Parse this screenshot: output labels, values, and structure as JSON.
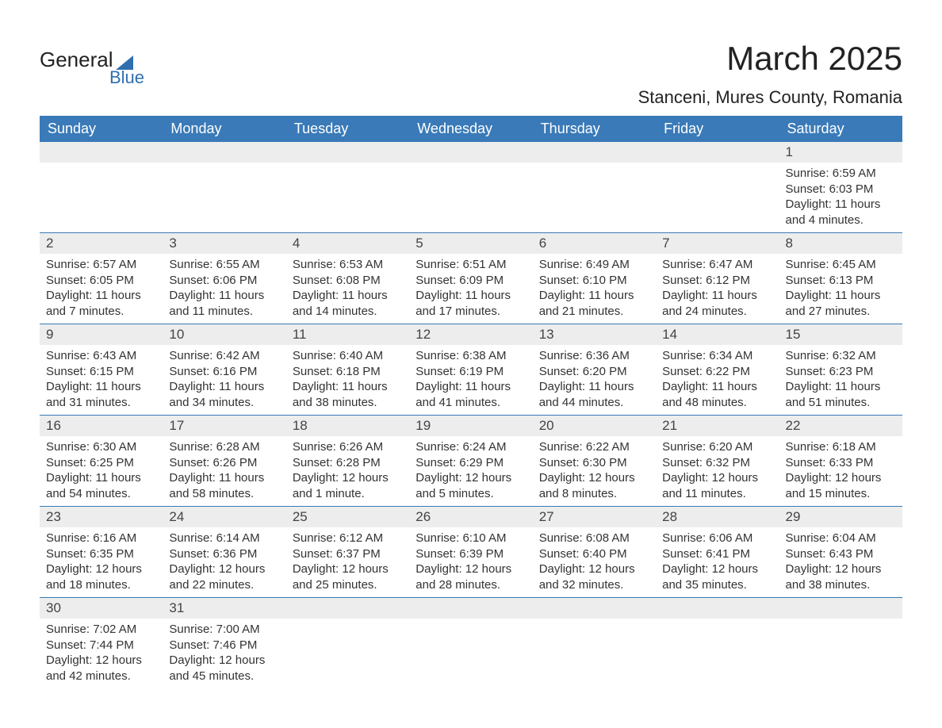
{
  "logo": {
    "general": "General",
    "blue": "Blue"
  },
  "title": "March 2025",
  "location": "Stanceni, Mures County, Romania",
  "colors": {
    "header_bg": "#3a7ab8",
    "header_text": "#ffffff",
    "daynum_bg": "#ededed",
    "border": "#3a7ab8",
    "text": "#333333",
    "logo_blue": "#2f6fb0"
  },
  "day_labels": [
    "Sunday",
    "Monday",
    "Tuesday",
    "Wednesday",
    "Thursday",
    "Friday",
    "Saturday"
  ],
  "weeks": [
    [
      null,
      null,
      null,
      null,
      null,
      null,
      {
        "n": "1",
        "sunrise": "Sunrise: 6:59 AM",
        "sunset": "Sunset: 6:03 PM",
        "daylight": "Daylight: 11 hours and 4 minutes."
      }
    ],
    [
      {
        "n": "2",
        "sunrise": "Sunrise: 6:57 AM",
        "sunset": "Sunset: 6:05 PM",
        "daylight": "Daylight: 11 hours and 7 minutes."
      },
      {
        "n": "3",
        "sunrise": "Sunrise: 6:55 AM",
        "sunset": "Sunset: 6:06 PM",
        "daylight": "Daylight: 11 hours and 11 minutes."
      },
      {
        "n": "4",
        "sunrise": "Sunrise: 6:53 AM",
        "sunset": "Sunset: 6:08 PM",
        "daylight": "Daylight: 11 hours and 14 minutes."
      },
      {
        "n": "5",
        "sunrise": "Sunrise: 6:51 AM",
        "sunset": "Sunset: 6:09 PM",
        "daylight": "Daylight: 11 hours and 17 minutes."
      },
      {
        "n": "6",
        "sunrise": "Sunrise: 6:49 AM",
        "sunset": "Sunset: 6:10 PM",
        "daylight": "Daylight: 11 hours and 21 minutes."
      },
      {
        "n": "7",
        "sunrise": "Sunrise: 6:47 AM",
        "sunset": "Sunset: 6:12 PM",
        "daylight": "Daylight: 11 hours and 24 minutes."
      },
      {
        "n": "8",
        "sunrise": "Sunrise: 6:45 AM",
        "sunset": "Sunset: 6:13 PM",
        "daylight": "Daylight: 11 hours and 27 minutes."
      }
    ],
    [
      {
        "n": "9",
        "sunrise": "Sunrise: 6:43 AM",
        "sunset": "Sunset: 6:15 PM",
        "daylight": "Daylight: 11 hours and 31 minutes."
      },
      {
        "n": "10",
        "sunrise": "Sunrise: 6:42 AM",
        "sunset": "Sunset: 6:16 PM",
        "daylight": "Daylight: 11 hours and 34 minutes."
      },
      {
        "n": "11",
        "sunrise": "Sunrise: 6:40 AM",
        "sunset": "Sunset: 6:18 PM",
        "daylight": "Daylight: 11 hours and 38 minutes."
      },
      {
        "n": "12",
        "sunrise": "Sunrise: 6:38 AM",
        "sunset": "Sunset: 6:19 PM",
        "daylight": "Daylight: 11 hours and 41 minutes."
      },
      {
        "n": "13",
        "sunrise": "Sunrise: 6:36 AM",
        "sunset": "Sunset: 6:20 PM",
        "daylight": "Daylight: 11 hours and 44 minutes."
      },
      {
        "n": "14",
        "sunrise": "Sunrise: 6:34 AM",
        "sunset": "Sunset: 6:22 PM",
        "daylight": "Daylight: 11 hours and 48 minutes."
      },
      {
        "n": "15",
        "sunrise": "Sunrise: 6:32 AM",
        "sunset": "Sunset: 6:23 PM",
        "daylight": "Daylight: 11 hours and 51 minutes."
      }
    ],
    [
      {
        "n": "16",
        "sunrise": "Sunrise: 6:30 AM",
        "sunset": "Sunset: 6:25 PM",
        "daylight": "Daylight: 11 hours and 54 minutes."
      },
      {
        "n": "17",
        "sunrise": "Sunrise: 6:28 AM",
        "sunset": "Sunset: 6:26 PM",
        "daylight": "Daylight: 11 hours and 58 minutes."
      },
      {
        "n": "18",
        "sunrise": "Sunrise: 6:26 AM",
        "sunset": "Sunset: 6:28 PM",
        "daylight": "Daylight: 12 hours and 1 minute."
      },
      {
        "n": "19",
        "sunrise": "Sunrise: 6:24 AM",
        "sunset": "Sunset: 6:29 PM",
        "daylight": "Daylight: 12 hours and 5 minutes."
      },
      {
        "n": "20",
        "sunrise": "Sunrise: 6:22 AM",
        "sunset": "Sunset: 6:30 PM",
        "daylight": "Daylight: 12 hours and 8 minutes."
      },
      {
        "n": "21",
        "sunrise": "Sunrise: 6:20 AM",
        "sunset": "Sunset: 6:32 PM",
        "daylight": "Daylight: 12 hours and 11 minutes."
      },
      {
        "n": "22",
        "sunrise": "Sunrise: 6:18 AM",
        "sunset": "Sunset: 6:33 PM",
        "daylight": "Daylight: 12 hours and 15 minutes."
      }
    ],
    [
      {
        "n": "23",
        "sunrise": "Sunrise: 6:16 AM",
        "sunset": "Sunset: 6:35 PM",
        "daylight": "Daylight: 12 hours and 18 minutes."
      },
      {
        "n": "24",
        "sunrise": "Sunrise: 6:14 AM",
        "sunset": "Sunset: 6:36 PM",
        "daylight": "Daylight: 12 hours and 22 minutes."
      },
      {
        "n": "25",
        "sunrise": "Sunrise: 6:12 AM",
        "sunset": "Sunset: 6:37 PM",
        "daylight": "Daylight: 12 hours and 25 minutes."
      },
      {
        "n": "26",
        "sunrise": "Sunrise: 6:10 AM",
        "sunset": "Sunset: 6:39 PM",
        "daylight": "Daylight: 12 hours and 28 minutes."
      },
      {
        "n": "27",
        "sunrise": "Sunrise: 6:08 AM",
        "sunset": "Sunset: 6:40 PM",
        "daylight": "Daylight: 12 hours and 32 minutes."
      },
      {
        "n": "28",
        "sunrise": "Sunrise: 6:06 AM",
        "sunset": "Sunset: 6:41 PM",
        "daylight": "Daylight: 12 hours and 35 minutes."
      },
      {
        "n": "29",
        "sunrise": "Sunrise: 6:04 AM",
        "sunset": "Sunset: 6:43 PM",
        "daylight": "Daylight: 12 hours and 38 minutes."
      }
    ],
    [
      {
        "n": "30",
        "sunrise": "Sunrise: 7:02 AM",
        "sunset": "Sunset: 7:44 PM",
        "daylight": "Daylight: 12 hours and 42 minutes."
      },
      {
        "n": "31",
        "sunrise": "Sunrise: 7:00 AM",
        "sunset": "Sunset: 7:46 PM",
        "daylight": "Daylight: 12 hours and 45 minutes."
      },
      null,
      null,
      null,
      null,
      null
    ]
  ]
}
